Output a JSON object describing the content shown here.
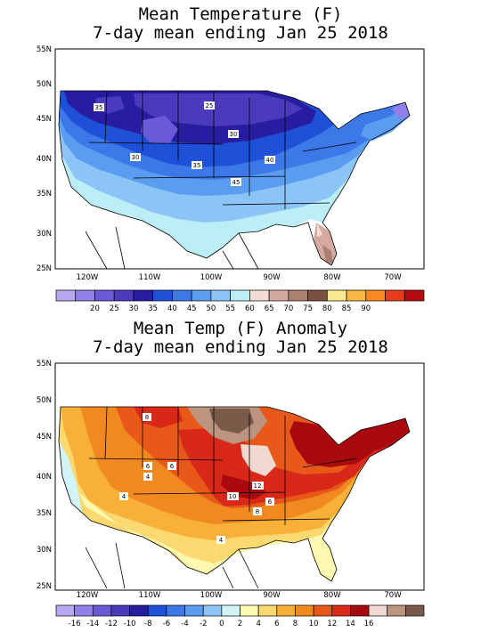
{
  "panels": [
    {
      "title_line1": "Mean Temperature (F)",
      "title_line2": "7-day mean ending Jan 25 2018",
      "lat_labels": [
        "55N",
        "50N",
        "45N",
        "40N",
        "35N",
        "30N",
        "25N"
      ],
      "lon_labels": [
        "120W",
        "110W",
        "100W",
        "90W",
        "80W",
        "70W"
      ],
      "contour_labels": [
        "35",
        "25",
        "30",
        "30",
        "35",
        "40",
        "45"
      ],
      "colorbar": {
        "colors": [
          "#b8a8f0",
          "#9080e8",
          "#6a5ad8",
          "#4a3abc",
          "#281ca0",
          "#1e50d8",
          "#3c78e8",
          "#5a9cf0",
          "#8cc4f8",
          "#bceef8",
          "#f2dcd4",
          "#d4aaa0",
          "#ac8070",
          "#7a5040",
          "#f8e890",
          "#f8b840",
          "#f88820",
          "#e83a1c",
          "#b40a10"
        ],
        "labels": [
          "20",
          "25",
          "30",
          "35",
          "40",
          "45",
          "50",
          "55",
          "60",
          "65",
          "70",
          "75",
          "80",
          "85",
          "90"
        ]
      }
    },
    {
      "title_line1": "Mean Temp (F) Anomaly",
      "title_line2": "7-day mean ending Jan 25 2018",
      "lat_labels": [
        "55N",
        "50N",
        "45N",
        "40N",
        "35N",
        "30N",
        "25N"
      ],
      "lon_labels": [
        "120W",
        "110W",
        "100W",
        "90W",
        "80W",
        "70W"
      ],
      "contour_labels": [
        "8",
        "6",
        "6",
        "4",
        "4",
        "10",
        "12",
        "6",
        "8",
        "4"
      ],
      "colorbar": {
        "colors": [
          "#b8a8f0",
          "#9080e8",
          "#6a5ad8",
          "#4a3abc",
          "#281ca0",
          "#1e50d8",
          "#3c78e8",
          "#5a9cf0",
          "#8cc4f8",
          "#d0f4f8",
          "#fff8b0",
          "#fcd870",
          "#f8b038",
          "#f08a20",
          "#e85818",
          "#d82818",
          "#a80a10",
          "#eed8d0",
          "#bc9480",
          "#7a5a48"
        ],
        "labels": [
          "-16",
          "-14",
          "-12",
          "-10",
          "-8",
          "-6",
          "-4",
          "-2",
          "0",
          "2",
          "4",
          "6",
          "8",
          "10",
          "12",
          "14",
          "16"
        ]
      }
    }
  ]
}
